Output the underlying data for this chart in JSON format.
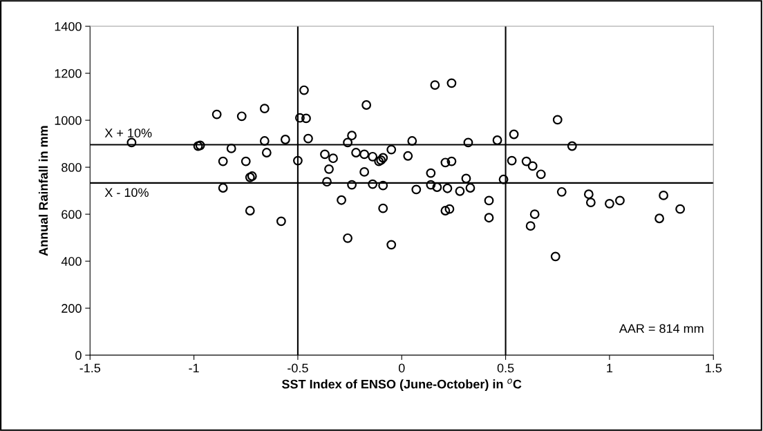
{
  "chart_data": {
    "type": "scatter",
    "xlabel": "SST Index of ENSO (June-October) in $^{o}$C",
    "ylabel": "Annual Rainfall in mm",
    "x": [
      -1.3,
      -0.98,
      -0.97,
      -0.89,
      -0.86,
      -0.86,
      -0.82,
      -0.77,
      -0.75,
      -0.73,
      -0.72,
      -0.73,
      -0.66,
      -0.66,
      -0.65,
      -0.58,
      -0.56,
      -0.5,
      -0.49,
      -0.47,
      -0.46,
      -0.45,
      -0.37,
      -0.36,
      -0.35,
      -0.33,
      -0.29,
      -0.26,
      -0.26,
      -0.24,
      -0.24,
      -0.22,
      -0.18,
      -0.18,
      -0.17,
      -0.14,
      -0.14,
      -0.11,
      -0.1,
      -0.09,
      -0.09,
      -0.09,
      -0.05,
      -0.05,
      0.03,
      0.05,
      0.07,
      0.14,
      0.14,
      0.16,
      0.17,
      0.21,
      0.21,
      0.22,
      0.23,
      0.24,
      0.24,
      0.28,
      0.31,
      0.32,
      0.33,
      0.42,
      0.42,
      0.46,
      0.49,
      0.53,
      0.54,
      0.6,
      0.62,
      0.63,
      0.64,
      0.67,
      0.75,
      0.74,
      0.77,
      0.82,
      0.9,
      0.91,
      1.0,
      1.05,
      1.24,
      1.26,
      1.34
    ],
    "values": [
      905,
      890,
      893,
      1025,
      825,
      712,
      880,
      1017,
      825,
      757,
      762,
      615,
      1050,
      912,
      862,
      570,
      918,
      828,
      1010,
      1128,
      1008,
      922,
      855,
      738,
      792,
      838,
      660,
      905,
      498,
      935,
      725,
      862,
      855,
      780,
      1065,
      845,
      728,
      825,
      830,
      840,
      722,
      625,
      875,
      470,
      848,
      912,
      705,
      775,
      725,
      1150,
      715,
      820,
      615,
      710,
      622,
      1158,
      825,
      698,
      752,
      905,
      712,
      585,
      658,
      915,
      748,
      828,
      940,
      825,
      550,
      805,
      600,
      770,
      1002,
      420,
      695,
      890,
      685,
      650,
      645,
      658,
      582,
      680,
      622
    ],
    "color": "#000000",
    "marker": "circle",
    "xlim": [
      -1.5,
      1.5
    ],
    "xticks": [
      -1.5,
      -1,
      -0.5,
      0,
      0.5,
      1,
      1.5
    ],
    "ylim": [
      0,
      1400
    ],
    "yticks": [
      0,
      200,
      400,
      600,
      800,
      1000,
      1200,
      1400
    ],
    "grid": false,
    "legend": false,
    "ref_lines": [
      {
        "axis": "x",
        "value": -0.5,
        "color": "#000000"
      },
      {
        "axis": "x",
        "value": 0.5,
        "color": "#000000"
      },
      {
        "axis": "y",
        "value": 896,
        "label": "X + 10%",
        "color": "#000000"
      },
      {
        "axis": "y",
        "value": 733,
        "label": "X - 10%",
        "color": "#000000"
      }
    ],
    "annotations": [
      "AAR = 814 mm"
    ]
  }
}
